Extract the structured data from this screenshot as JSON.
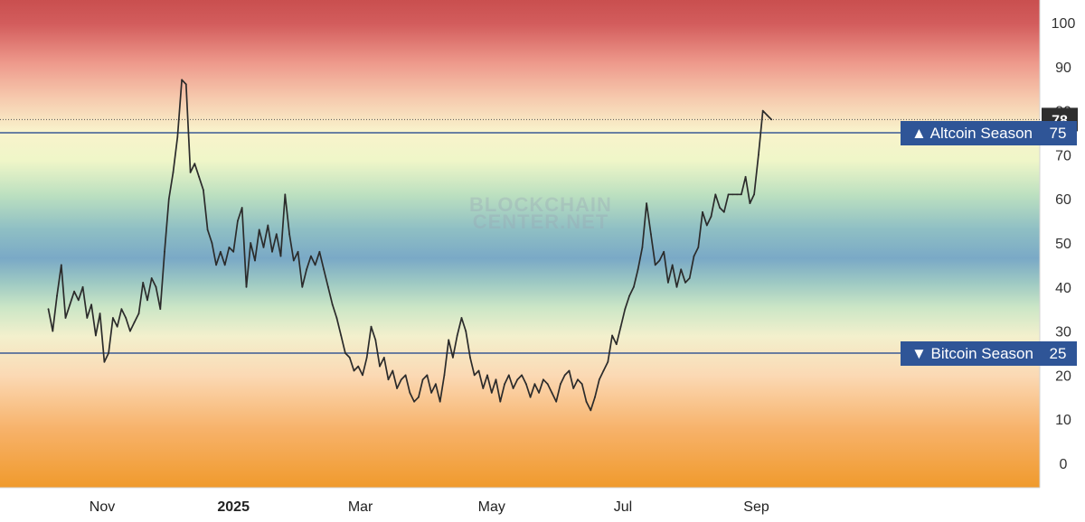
{
  "chart_data": {
    "type": "line",
    "title": "",
    "xlabel": "",
    "ylabel": "",
    "ylim": [
      -5,
      105
    ],
    "y_ticks": [
      0,
      10,
      20,
      30,
      40,
      50,
      60,
      70,
      80,
      90,
      100
    ],
    "x_ticks": [
      {
        "label": "Nov",
        "date": "2024-11-01",
        "bold": false
      },
      {
        "label": "2025",
        "date": "2025-01-01",
        "bold": true
      },
      {
        "label": "Mar",
        "date": "2025-03-01",
        "bold": false
      },
      {
        "label": "May",
        "date": "2025-05-01",
        "bold": false
      },
      {
        "label": "Jul",
        "date": "2025-07-01",
        "bold": false
      },
      {
        "label": "Sep",
        "date": "2025-09-01",
        "bold": false
      }
    ],
    "watermark": [
      "BLOCKCHAIN",
      "CENTER.NET"
    ],
    "current_value": 78,
    "thresholds": [
      {
        "label": "▲ Altcoin Season",
        "value": 75,
        "value_label": "75"
      },
      {
        "label": "▼ Bitcoin Season",
        "value": 25,
        "value_label": "25"
      }
    ],
    "series": [
      {
        "color": "#2b2b2b",
        "points": [
          [
            "2024-10-07",
            35
          ],
          [
            "2024-10-09",
            30
          ],
          [
            "2024-10-11",
            38
          ],
          [
            "2024-10-13",
            45
          ],
          [
            "2024-10-15",
            33
          ],
          [
            "2024-10-17",
            36
          ],
          [
            "2024-10-19",
            39
          ],
          [
            "2024-10-21",
            37
          ],
          [
            "2024-10-23",
            40
          ],
          [
            "2024-10-25",
            33
          ],
          [
            "2024-10-27",
            36
          ],
          [
            "2024-10-29",
            29
          ],
          [
            "2024-10-31",
            34
          ],
          [
            "2024-11-02",
            23
          ],
          [
            "2024-11-04",
            25
          ],
          [
            "2024-11-06",
            33
          ],
          [
            "2024-11-08",
            31
          ],
          [
            "2024-11-10",
            35
          ],
          [
            "2024-11-12",
            33
          ],
          [
            "2024-11-14",
            30
          ],
          [
            "2024-11-16",
            32
          ],
          [
            "2024-11-18",
            34
          ],
          [
            "2024-11-20",
            41
          ],
          [
            "2024-11-22",
            37
          ],
          [
            "2024-11-24",
            42
          ],
          [
            "2024-11-26",
            40
          ],
          [
            "2024-11-28",
            35
          ],
          [
            "2024-11-30",
            48
          ],
          [
            "2024-12-02",
            60
          ],
          [
            "2024-12-04",
            66
          ],
          [
            "2024-12-06",
            74
          ],
          [
            "2024-12-08",
            87
          ],
          [
            "2024-12-10",
            86
          ],
          [
            "2024-12-12",
            66
          ],
          [
            "2024-12-14",
            68
          ],
          [
            "2024-12-16",
            65
          ],
          [
            "2024-12-18",
            62
          ],
          [
            "2024-12-20",
            53
          ],
          [
            "2024-12-22",
            50
          ],
          [
            "2024-12-24",
            45
          ],
          [
            "2024-12-26",
            48
          ],
          [
            "2024-12-28",
            45
          ],
          [
            "2024-12-30",
            49
          ],
          [
            "2025-01-01",
            48
          ],
          [
            "2025-01-03",
            55
          ],
          [
            "2025-01-05",
            58
          ],
          [
            "2025-01-07",
            40
          ],
          [
            "2025-01-09",
            50
          ],
          [
            "2025-01-11",
            46
          ],
          [
            "2025-01-13",
            53
          ],
          [
            "2025-01-15",
            49
          ],
          [
            "2025-01-17",
            54
          ],
          [
            "2025-01-19",
            48
          ],
          [
            "2025-01-21",
            52
          ],
          [
            "2025-01-23",
            47
          ],
          [
            "2025-01-25",
            61
          ],
          [
            "2025-01-27",
            52
          ],
          [
            "2025-01-29",
            46
          ],
          [
            "2025-01-31",
            48
          ],
          [
            "2025-02-02",
            40
          ],
          [
            "2025-02-04",
            44
          ],
          [
            "2025-02-06",
            47
          ],
          [
            "2025-02-08",
            45
          ],
          [
            "2025-02-10",
            48
          ],
          [
            "2025-02-12",
            44
          ],
          [
            "2025-02-14",
            40
          ],
          [
            "2025-02-16",
            36
          ],
          [
            "2025-02-18",
            33
          ],
          [
            "2025-02-20",
            29
          ],
          [
            "2025-02-22",
            25
          ],
          [
            "2025-02-24",
            24
          ],
          [
            "2025-02-26",
            21
          ],
          [
            "2025-02-28",
            22
          ],
          [
            "2025-03-02",
            20
          ],
          [
            "2025-03-04",
            24
          ],
          [
            "2025-03-06",
            31
          ],
          [
            "2025-03-08",
            28
          ],
          [
            "2025-03-10",
            22
          ],
          [
            "2025-03-12",
            24
          ],
          [
            "2025-03-14",
            19
          ],
          [
            "2025-03-16",
            21
          ],
          [
            "2025-03-18",
            17
          ],
          [
            "2025-03-20",
            19
          ],
          [
            "2025-03-22",
            20
          ],
          [
            "2025-03-24",
            16
          ],
          [
            "2025-03-26",
            14
          ],
          [
            "2025-03-28",
            15
          ],
          [
            "2025-03-30",
            19
          ],
          [
            "2025-04-01",
            20
          ],
          [
            "2025-04-03",
            16
          ],
          [
            "2025-04-05",
            18
          ],
          [
            "2025-04-07",
            14
          ],
          [
            "2025-04-09",
            20
          ],
          [
            "2025-04-11",
            28
          ],
          [
            "2025-04-13",
            24
          ],
          [
            "2025-04-15",
            29
          ],
          [
            "2025-04-17",
            33
          ],
          [
            "2025-04-19",
            30
          ],
          [
            "2025-04-21",
            24
          ],
          [
            "2025-04-23",
            20
          ],
          [
            "2025-04-25",
            21
          ],
          [
            "2025-04-27",
            17
          ],
          [
            "2025-04-29",
            20
          ],
          [
            "2025-05-01",
            16
          ],
          [
            "2025-05-03",
            19
          ],
          [
            "2025-05-05",
            14
          ],
          [
            "2025-05-07",
            18
          ],
          [
            "2025-05-09",
            20
          ],
          [
            "2025-05-11",
            17
          ],
          [
            "2025-05-13",
            19
          ],
          [
            "2025-05-15",
            20
          ],
          [
            "2025-05-17",
            18
          ],
          [
            "2025-05-19",
            15
          ],
          [
            "2025-05-21",
            18
          ],
          [
            "2025-05-23",
            16
          ],
          [
            "2025-05-25",
            19
          ],
          [
            "2025-05-27",
            18
          ],
          [
            "2025-05-29",
            16
          ],
          [
            "2025-05-31",
            14
          ],
          [
            "2025-06-02",
            18
          ],
          [
            "2025-06-04",
            20
          ],
          [
            "2025-06-06",
            21
          ],
          [
            "2025-06-08",
            17
          ],
          [
            "2025-06-10",
            19
          ],
          [
            "2025-06-12",
            18
          ],
          [
            "2025-06-14",
            14
          ],
          [
            "2025-06-16",
            12
          ],
          [
            "2025-06-18",
            15
          ],
          [
            "2025-06-20",
            19
          ],
          [
            "2025-06-22",
            21
          ],
          [
            "2025-06-24",
            23
          ],
          [
            "2025-06-26",
            29
          ],
          [
            "2025-06-28",
            27
          ],
          [
            "2025-06-30",
            31
          ],
          [
            "2025-07-02",
            35
          ],
          [
            "2025-07-04",
            38
          ],
          [
            "2025-07-06",
            40
          ],
          [
            "2025-07-08",
            44
          ],
          [
            "2025-07-10",
            49
          ],
          [
            "2025-07-12",
            59
          ],
          [
            "2025-07-14",
            52
          ],
          [
            "2025-07-16",
            45
          ],
          [
            "2025-07-18",
            46
          ],
          [
            "2025-07-20",
            48
          ],
          [
            "2025-07-22",
            41
          ],
          [
            "2025-07-24",
            45
          ],
          [
            "2025-07-26",
            40
          ],
          [
            "2025-07-28",
            44
          ],
          [
            "2025-07-30",
            41
          ],
          [
            "2025-08-01",
            42
          ],
          [
            "2025-08-03",
            47
          ],
          [
            "2025-08-05",
            49
          ],
          [
            "2025-08-07",
            57
          ],
          [
            "2025-08-09",
            54
          ],
          [
            "2025-08-11",
            56
          ],
          [
            "2025-08-13",
            61
          ],
          [
            "2025-08-15",
            58
          ],
          [
            "2025-08-17",
            57
          ],
          [
            "2025-08-19",
            61
          ],
          [
            "2025-08-21",
            61
          ],
          [
            "2025-08-23",
            61
          ],
          [
            "2025-08-25",
            61
          ],
          [
            "2025-08-27",
            65
          ],
          [
            "2025-08-29",
            59
          ],
          [
            "2025-08-31",
            61
          ],
          [
            "2025-09-02",
            70
          ],
          [
            "2025-09-04",
            80
          ],
          [
            "2025-09-06",
            79
          ],
          [
            "2025-09-08",
            78
          ]
        ]
      }
    ]
  }
}
